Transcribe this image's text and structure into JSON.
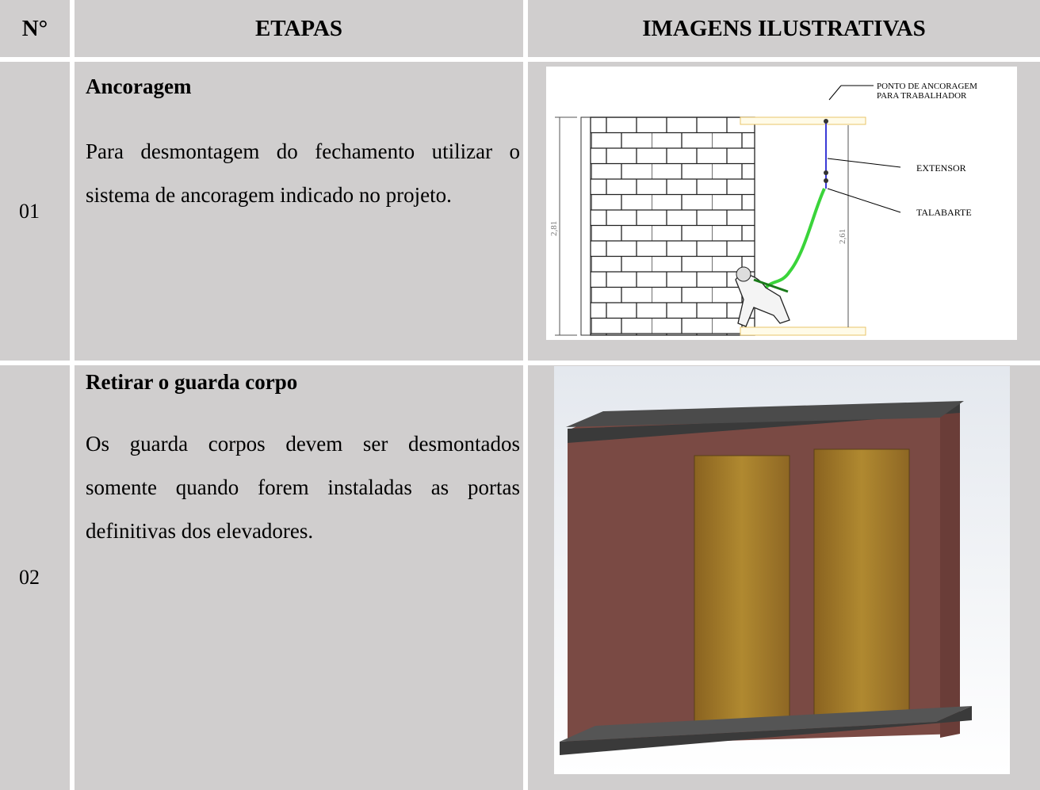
{
  "header": {
    "number": "N°",
    "steps": "ETAPAS",
    "images": "IMAGENS ILUSTRATIVAS"
  },
  "rows": [
    {
      "number": "01",
      "title": "Ancoragem",
      "text": "Para desmontagem do fechamento utilizar o sistema de ancoragem indicado no projeto.",
      "figure": {
        "anchor_label": [
          "PONTO DE ANCORAGEM",
          "PARA TRABALHADOR"
        ],
        "extender": "EXTENSOR",
        "lanyard": "TALABARTE",
        "height_total": "2,81",
        "height_anchor": "2,61"
      }
    },
    {
      "number": "02",
      "title": "Retirar o guarda corpo",
      "text": "Os guarda corpos devem ser desmontados somente quando forem instaladas as portas definitivas dos elevadores."
    }
  ]
}
